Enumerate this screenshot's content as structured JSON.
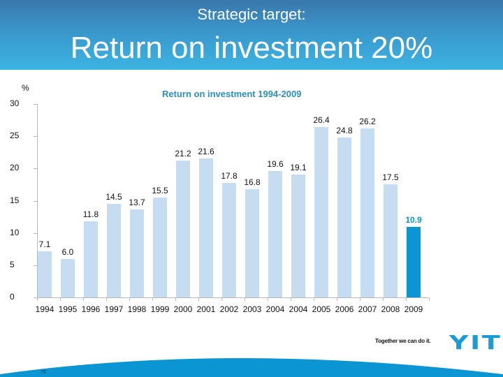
{
  "header": {
    "subtitle": "Strategic target:",
    "title": "Return on investment 20%"
  },
  "chart_data": {
    "type": "bar",
    "title": "Return on investment 1994-2009",
    "xlabel": "",
    "ylabel": "%",
    "ylim": [
      0,
      30
    ],
    "yticks": [
      0,
      5,
      10,
      15,
      20,
      25,
      30
    ],
    "grid": false,
    "legend": null,
    "categories": [
      "1994",
      "1995",
      "1996",
      "1997",
      "1998",
      "1999",
      "2000",
      "2001",
      "2002",
      "2003",
      "2004",
      "2004",
      "2005",
      "2006",
      "2007",
      "2008",
      "2009"
    ],
    "values": [
      7.1,
      6.0,
      11.8,
      14.5,
      13.7,
      15.5,
      21.2,
      21.6,
      17.8,
      16.8,
      19.6,
      19.1,
      26.4,
      24.8,
      26.2,
      17.5,
      10.9
    ],
    "value_labels": [
      "7.1",
      "6.0",
      "11.8",
      "14.5",
      "13.7",
      "15.5",
      "21.2",
      "21.6",
      "17.8",
      "16.8",
      "19.6",
      "19.1",
      "26.4",
      "24.8",
      "26.2",
      "17.5",
      "10.9"
    ],
    "highlight_index": 16,
    "colors": {
      "bar": "#c5dcf1",
      "highlight": "#0b96d3",
      "title": "#2a8fbf"
    }
  },
  "footer": {
    "tagline": "Together we can do it.",
    "logo": "YIT",
    "page_number": "70",
    "brand_color": "#0b96d3"
  }
}
